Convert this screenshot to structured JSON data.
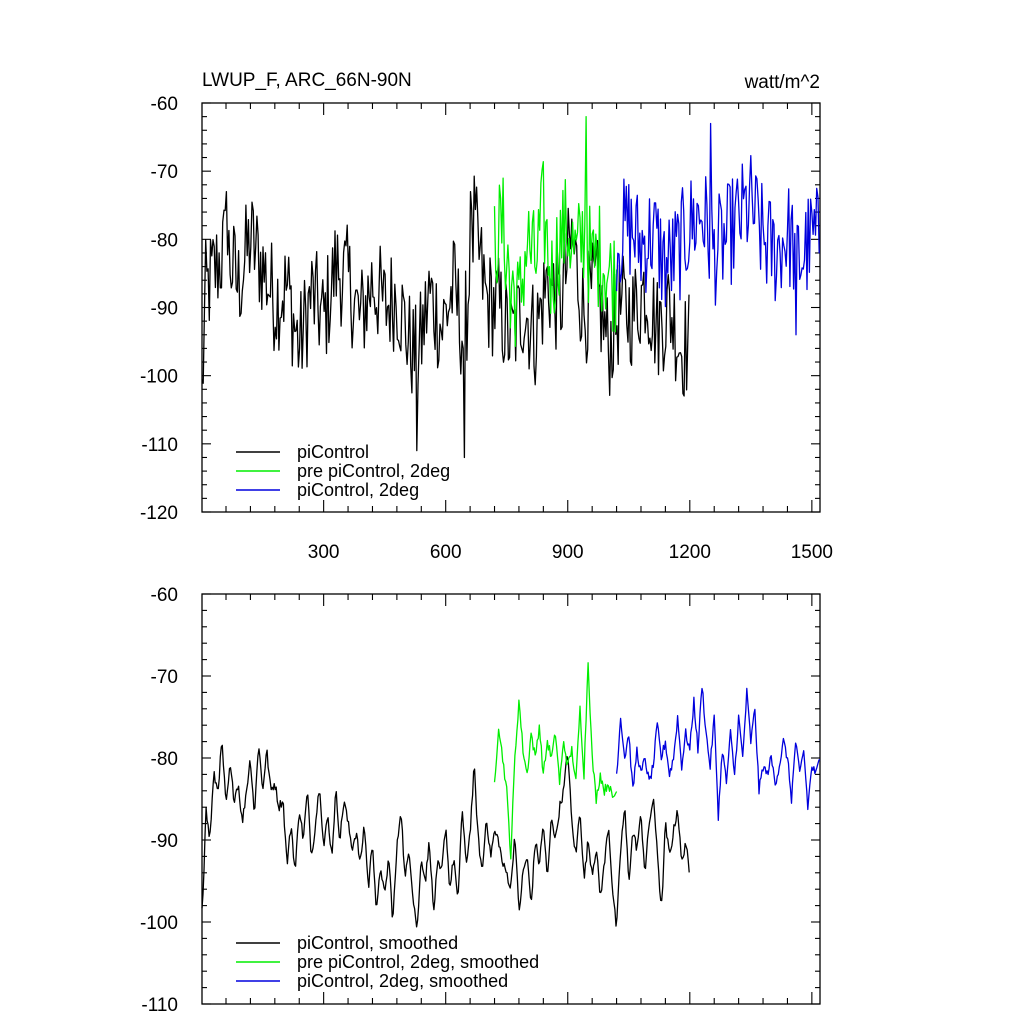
{
  "chart_data": [
    {
      "type": "line",
      "title": "LWUP_F, ARC_66N-90N",
      "units": "watt/m^2",
      "xlabel": "",
      "ylabel": "",
      "xlim": [
        1,
        1520
      ],
      "ylim": [
        -120,
        -60
      ],
      "xticks": [
        300,
        600,
        900,
        1200,
        1500
      ],
      "xtick_labels": [
        "300",
        "600",
        "900",
        "1200",
        "1500"
      ],
      "yticks": [
        -60,
        -70,
        -80,
        -90,
        -100,
        -110,
        -120
      ],
      "ytick_labels": [
        "-60",
        "-70",
        "-80",
        "-90",
        "-100",
        "-110",
        "-120"
      ],
      "grid": false,
      "legend_position": "bottom-left",
      "series": [
        {
          "name": "piControl",
          "color": "#000000",
          "x": [
            1,
            10,
            30,
            60,
            90,
            120,
            150,
            180,
            210,
            240,
            270,
            300,
            330,
            360,
            390,
            420,
            450,
            480,
            510,
            530,
            560,
            590,
            620,
            645,
            670,
            700,
            730,
            760,
            790,
            820,
            850,
            880,
            910,
            940,
            970,
            1000,
            1030,
            1060,
            1090,
            1120,
            1150,
            1180,
            1200
          ],
          "y": [
            -103,
            -88,
            -85,
            -81,
            -87,
            -80,
            -84,
            -89,
            -87,
            -96,
            -88,
            -92,
            -84,
            -86,
            -92,
            -86,
            -90,
            -88,
            -95,
            -98,
            -88,
            -93,
            -87,
            -95,
            -78,
            -89,
            -90,
            -95,
            -90,
            -94,
            -86,
            -90,
            -80,
            -91,
            -87,
            -96,
            -90,
            -91,
            -87,
            -93,
            -90,
            -96,
            -95
          ],
          "max": [
            -73,
            -73
          ],
          "min": [
            -111,
            -112
          ],
          "description_points": {
            "max_x": [
              62,
              660
            ],
            "min_x": [
              530,
              645
            ]
          }
        },
        {
          "name": "pre piControl, 2deg",
          "color": "#00ee00",
          "x": [
            720,
            740,
            760,
            780,
            800,
            820,
            840,
            860,
            880,
            900,
            920,
            940,
            960,
            980,
            1000,
            1020
          ],
          "y": [
            -80,
            -78,
            -86,
            -90,
            -80,
            -84,
            -76,
            -86,
            -80,
            -78,
            -83,
            -79,
            -84,
            -82,
            -85,
            -86
          ],
          "max": [
            -62
          ],
          "min": [
            -93
          ],
          "description_points": {
            "max_x": [
              945
            ],
            "min_x": [
              760
            ]
          }
        },
        {
          "name": "piControl, 2deg",
          "color": "#0000dd",
          "x": [
            1020,
            1050,
            1080,
            1110,
            1140,
            1170,
            1200,
            1230,
            1260,
            1290,
            1320,
            1350,
            1380,
            1410,
            1440,
            1470,
            1500,
            1520
          ],
          "y": [
            -80,
            -78,
            -81,
            -79,
            -84,
            -82,
            -78,
            -76,
            -82,
            -80,
            -77,
            -75,
            -80,
            -82,
            -79,
            -83,
            -80,
            -80
          ],
          "max": [
            -63
          ],
          "min": [
            -94
          ],
          "description_points": {
            "max_x": [
              1250
            ],
            "min_x": [
              1460
            ]
          }
        }
      ]
    },
    {
      "type": "line",
      "title": "",
      "xlabel": "",
      "ylabel": "",
      "xlim": [
        1,
        1520
      ],
      "ylim": [
        -110,
        -60
      ],
      "xticks": [
        300,
        600,
        900,
        1200,
        1500
      ],
      "yticks": [
        -60,
        -70,
        -80,
        -90,
        -100,
        -110
      ],
      "ytick_labels": [
        "-60",
        "-70",
        "-80",
        "-90",
        "-100",
        "-110"
      ],
      "grid": false,
      "legend_position": "bottom-left",
      "series": [
        {
          "name": "piControl, smoothed",
          "color": "#000000",
          "x": [
            1,
            5,
            10,
            20,
            30,
            40,
            50,
            60,
            70,
            80,
            90,
            100,
            110,
            120,
            130,
            140,
            150,
            160,
            170,
            180,
            190,
            200,
            210,
            220,
            230,
            240,
            250,
            260,
            270,
            280,
            290,
            300,
            310,
            320,
            330,
            340,
            350,
            360,
            370,
            380,
            390,
            400,
            410,
            420,
            430,
            440,
            450,
            460,
            470,
            480,
            490,
            500,
            510,
            520,
            530,
            540,
            550,
            560,
            570,
            580,
            590,
            600,
            610,
            620,
            630,
            640,
            650,
            660,
            670,
            680,
            690,
            700,
            710,
            720,
            730,
            740,
            750,
            760,
            770,
            780,
            790,
            800,
            810,
            820,
            830,
            840,
            850,
            860,
            870,
            880,
            890,
            900,
            910,
            920,
            930,
            940,
            950,
            960,
            970,
            980,
            990,
            1000,
            1010,
            1020,
            1030,
            1040,
            1050,
            1060,
            1070,
            1080,
            1090,
            1100,
            1110,
            1120,
            1130,
            1140,
            1150,
            1160,
            1170,
            1180,
            1190,
            1200
          ],
          "y": [
            -98,
            -95,
            -86,
            -90,
            -82,
            -84,
            -78,
            -86,
            -81,
            -85,
            -83,
            -88,
            -84,
            -80,
            -87,
            -78,
            -84,
            -79,
            -84,
            -83,
            -86,
            -85,
            -93,
            -88,
            -94,
            -86,
            -90,
            -84,
            -92,
            -88,
            -83,
            -91,
            -87,
            -92,
            -84,
            -90,
            -85,
            -88,
            -91,
            -89,
            -93,
            -88,
            -96,
            -90,
            -99,
            -93,
            -97,
            -92,
            -100,
            -91,
            -86,
            -95,
            -91,
            -97,
            -101,
            -92,
            -95,
            -90,
            -99,
            -93,
            -94,
            -88,
            -96,
            -92,
            -98,
            -86,
            -93,
            -89,
            -81,
            -90,
            -94,
            -87,
            -92,
            -89,
            -90,
            -93,
            -94,
            -96,
            -89,
            -99,
            -94,
            -92,
            -98,
            -90,
            -93,
            -88,
            -95,
            -87,
            -90,
            -86,
            -84,
            -79,
            -88,
            -92,
            -86,
            -95,
            -90,
            -94,
            -91,
            -97,
            -93,
            -88,
            -96,
            -101,
            -91,
            -86,
            -95,
            -89,
            -91,
            -87,
            -94,
            -88,
            -85,
            -91,
            -99,
            -88,
            -92,
            -89,
            -86,
            -93,
            -90,
            -95
          ]
        },
        {
          "name": "pre piControl, 2deg, smoothed",
          "color": "#00ee00",
          "x": [
            720,
            730,
            740,
            750,
            760,
            770,
            780,
            790,
            800,
            810,
            820,
            830,
            840,
            850,
            860,
            870,
            880,
            890,
            900,
            910,
            920,
            930,
            940,
            950,
            960,
            970,
            980,
            990,
            1000,
            1010,
            1020
          ],
          "y": [
            -83,
            -76,
            -80,
            -84,
            -92,
            -80,
            -73,
            -79,
            -82,
            -77,
            -80,
            -76,
            -82,
            -78,
            -80,
            -77,
            -83,
            -78,
            -81,
            -79,
            -83,
            -74,
            -82,
            -68,
            -80,
            -85,
            -82,
            -84,
            -83,
            -85,
            -84
          ]
        },
        {
          "name": "piControl, 2deg, smoothed",
          "color": "#0000dd",
          "x": [
            1020,
            1030,
            1040,
            1050,
            1060,
            1070,
            1080,
            1090,
            1100,
            1110,
            1120,
            1130,
            1140,
            1150,
            1160,
            1170,
            1180,
            1190,
            1200,
            1210,
            1220,
            1230,
            1240,
            1250,
            1260,
            1270,
            1280,
            1290,
            1300,
            1310,
            1320,
            1330,
            1340,
            1350,
            1360,
            1370,
            1380,
            1390,
            1400,
            1410,
            1420,
            1430,
            1440,
            1450,
            1460,
            1470,
            1480,
            1490,
            1500,
            1510,
            1520
          ],
          "y": [
            -82,
            -75,
            -80,
            -77,
            -84,
            -79,
            -82,
            -80,
            -83,
            -81,
            -76,
            -80,
            -78,
            -82,
            -80,
            -75,
            -81,
            -77,
            -79,
            -73,
            -79,
            -71,
            -77,
            -81,
            -75,
            -87,
            -79,
            -83,
            -77,
            -82,
            -75,
            -80,
            -72,
            -78,
            -74,
            -84,
            -81,
            -82,
            -80,
            -83,
            -81,
            -78,
            -80,
            -85,
            -78,
            -82,
            -79,
            -86,
            -81,
            -82,
            -80
          ]
        }
      ]
    }
  ]
}
